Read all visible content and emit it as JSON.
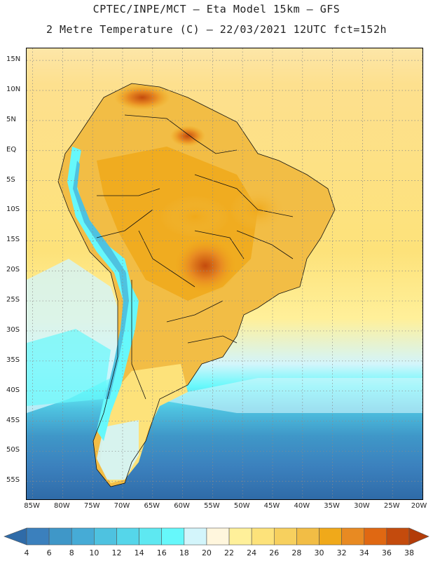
{
  "header": {
    "line1": "CPTEC/INPE/MCT –  Eta Model 15km – GFS",
    "line2": "2 Metre Temperature (C) – 22/03/2021 12UTC fct=152h"
  },
  "map": {
    "lat_range": [
      -58,
      17
    ],
    "lon_range": [
      -86,
      -20
    ],
    "lat_labels": [
      "15N",
      "10N",
      "5N",
      "EQ",
      "5S",
      "10S",
      "15S",
      "20S",
      "25S",
      "30S",
      "35S",
      "40S",
      "45S",
      "50S",
      "55S"
    ],
    "lat_values": [
      15,
      10,
      5,
      0,
      -5,
      -10,
      -15,
      -20,
      -25,
      -30,
      -35,
      -40,
      -45,
      -50,
      -55
    ],
    "lon_labels": [
      "85W",
      "80W",
      "75W",
      "70W",
      "65W",
      "60W",
      "55W",
      "50W",
      "45W",
      "40W",
      "35W",
      "30W",
      "25W",
      "20W"
    ],
    "lon_values": [
      -85,
      -80,
      -75,
      -70,
      -65,
      -60,
      -55,
      -50,
      -45,
      -40,
      -35,
      -30,
      -25,
      -20
    ]
  },
  "colorbar": {
    "labels": [
      "4",
      "6",
      "8",
      "10",
      "12",
      "14",
      "16",
      "18",
      "20",
      "22",
      "24",
      "26",
      "28",
      "30",
      "32",
      "34",
      "36",
      "38"
    ],
    "colors": [
      "#2f6ba8",
      "#3b80bd",
      "#3f97c8",
      "#46abd6",
      "#4ec2e0",
      "#55d6ea",
      "#5ee8f1",
      "#66f8fb",
      "#d3f5fb",
      "#fff6dd",
      "#fff09a",
      "#fde27a",
      "#f7d05e",
      "#f2bd45",
      "#f0a91a",
      "#e88a22",
      "#e06812",
      "#c44b0d",
      "#b33c08"
    ]
  }
}
